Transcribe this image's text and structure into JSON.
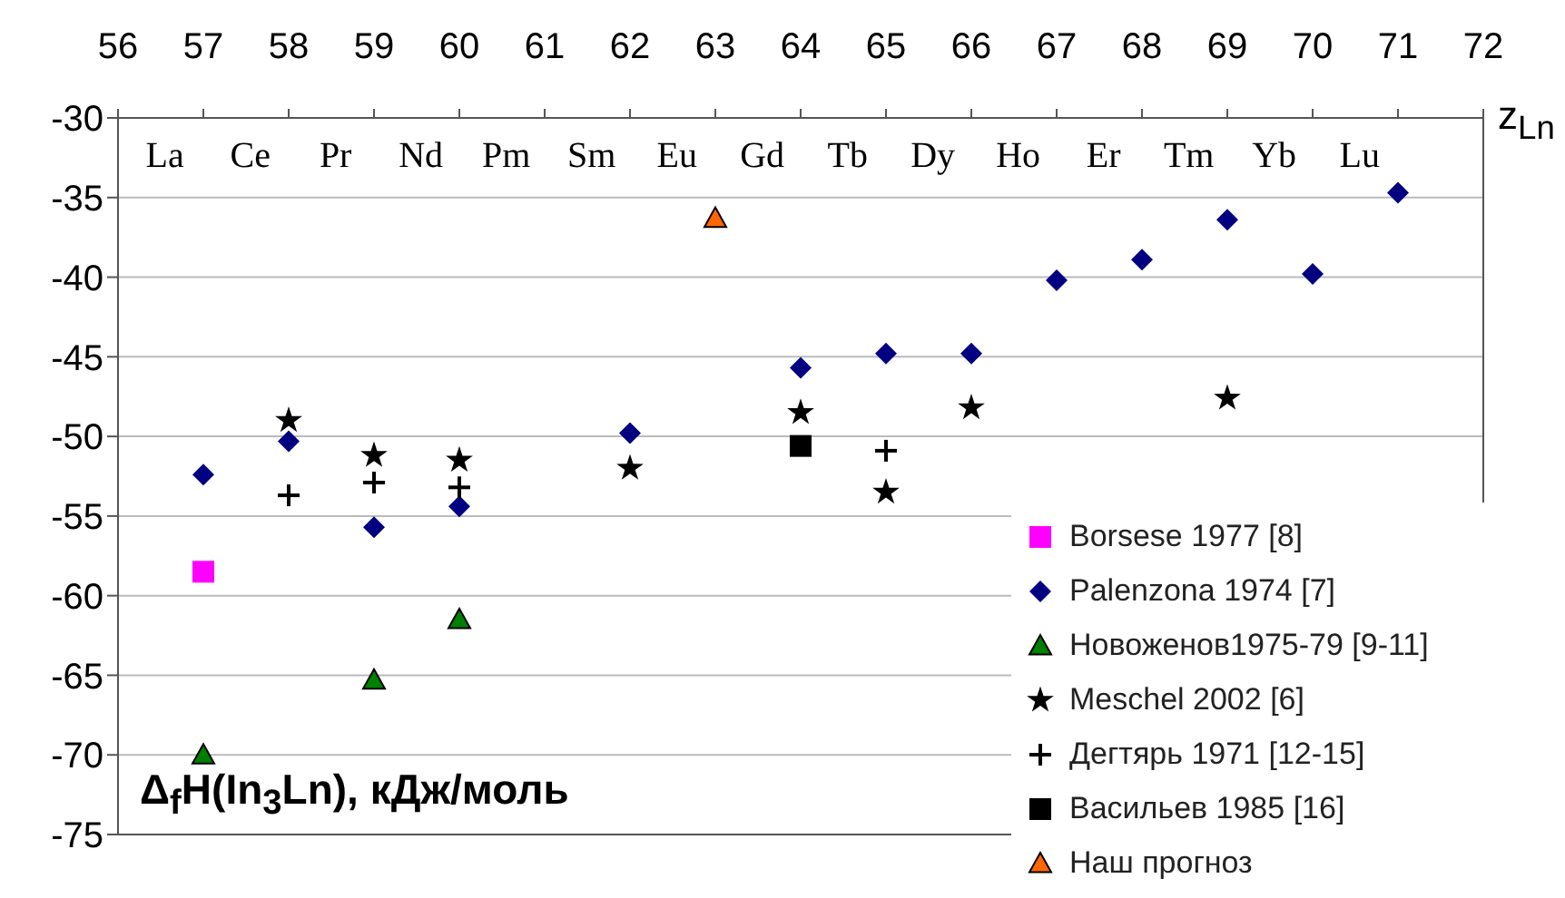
{
  "chart_data": {
    "type": "scatter",
    "xlabel": "z$_{Ln}$",
    "ylabel": "Δ$_{f}$H(In$_{3}$Ln), кДж/моль",
    "annotations": [
      "La",
      "Ce",
      "Pr",
      "Nd",
      "Pm",
      "Sm",
      "Eu",
      "Gd",
      "Tb",
      "Dy",
      "Ho",
      "Er",
      "Tm",
      "Yb",
      "Lu"
    ],
    "xlim": [
      56,
      72
    ],
    "xticks": [
      56,
      57,
      58,
      59,
      60,
      61,
      62,
      63,
      64,
      65,
      66,
      67,
      68,
      69,
      70,
      71,
      72
    ],
    "ylim": [
      -75,
      -30
    ],
    "yticks": [
      -75,
      -70,
      -65,
      -60,
      -55,
      -50,
      -45,
      -40,
      -35,
      -30
    ],
    "grid": "y",
    "legend": "bottom right",
    "series": [
      {
        "name": "Borsese 1977 [8]",
        "color": "#ff00ff",
        "marker": "square",
        "x": [
          57
        ],
        "values": [
          -58.5
        ]
      },
      {
        "name": "Palenzona 1974 [7]",
        "color": "#000080",
        "marker": "diamond",
        "x": [
          57,
          58,
          59,
          60,
          62,
          64,
          65,
          66,
          67,
          68,
          69,
          70,
          71
        ],
        "values": [
          -52.4,
          -50.3,
          -55.7,
          -54.4,
          -49.8,
          -45.7,
          -44.8,
          -44.8,
          -40.2,
          -38.9,
          -36.4,
          -39.8,
          -34.7
        ]
      },
      {
        "name": "Новоженов1975-79 [9-11]",
        "color": "#008000",
        "marker": "triangle",
        "x": [
          57,
          59,
          60
        ],
        "values": [
          -70,
          -65.3,
          -61.5
        ]
      },
      {
        "name": "Meschel 2002 [6]",
        "color": "#000000",
        "marker": "star",
        "x": [
          58,
          59,
          60,
          62,
          64,
          65,
          66,
          69
        ],
        "values": [
          -49.0,
          -51.2,
          -51.5,
          -52.0,
          -48.5,
          -53.5,
          -48.2,
          -47.6
        ]
      },
      {
        "name": "Дегтярь 1971 [12-15]",
        "color": "#000000",
        "marker": "cross",
        "x": [
          58,
          59,
          60,
          65
        ],
        "values": [
          -53.7,
          -52.9,
          -53.2,
          -50.9
        ]
      },
      {
        "name": "Васильев 1985 [16]",
        "color": "#000000",
        "marker": "square",
        "x": [
          64
        ],
        "values": [
          -50.6
        ]
      },
      {
        "name": "Наш прогноз",
        "color": "#ff6600",
        "marker": "triangle",
        "x": [
          63
        ],
        "values": [
          -36.3
        ]
      }
    ]
  }
}
